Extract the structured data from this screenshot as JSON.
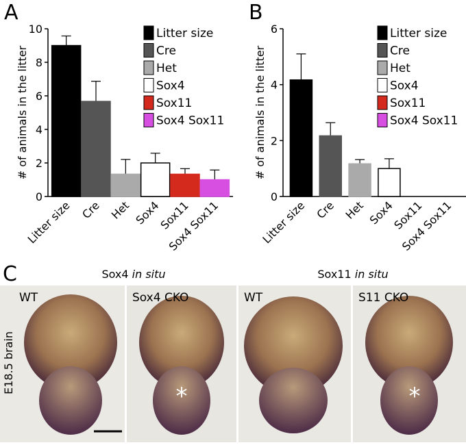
{
  "chart_data": [
    {
      "type": "bar",
      "panel_label": "A",
      "ylabel": "# of animals in the litter",
      "categories": [
        "Litter size",
        "Cre",
        "Het",
        "Sox4",
        "Sox11",
        "Sox4 Sox11"
      ],
      "values": [
        9,
        5.67,
        1.33,
        2,
        1.33,
        1
      ],
      "errors": [
        0.57,
        1.2,
        0.88,
        0.58,
        0.33,
        0.58
      ],
      "colors": [
        "#000000",
        "#555555",
        "#aaaaaa",
        "#ffffff",
        "#d42a1e",
        "#d64fe0"
      ],
      "ylim": [
        0,
        10
      ],
      "yticks": [
        0,
        2,
        4,
        6,
        8,
        10
      ]
    },
    {
      "type": "bar",
      "panel_label": "B",
      "ylabel": "# of animals in the litter",
      "categories": [
        "Litter size",
        "Cre",
        "Het",
        "Sox4",
        "Sox11",
        "Sox4 Sox11"
      ],
      "values": [
        4.17,
        2.17,
        1.17,
        1,
        0,
        0
      ],
      "errors": [
        0.93,
        0.47,
        0.15,
        0.35,
        0,
        0
      ],
      "colors": [
        "#000000",
        "#555555",
        "#aaaaaa",
        "#ffffff",
        "#d42a1e",
        "#d64fe0"
      ],
      "ylim": [
        0,
        6
      ],
      "yticks": [
        0,
        2,
        4,
        6
      ]
    }
  ],
  "panel_c": {
    "label": "C",
    "side_label": "E18.5 brain",
    "groups": [
      {
        "gene": "Sox4",
        "method": "in situ"
      },
      {
        "gene": "Sox11",
        "method": "in situ"
      }
    ],
    "images": [
      {
        "label": "WT"
      },
      {
        "label": "Sox4 CKO",
        "mark": "*"
      },
      {
        "label": "WT"
      },
      {
        "label": "S11 CKO",
        "mark": "*"
      }
    ]
  }
}
